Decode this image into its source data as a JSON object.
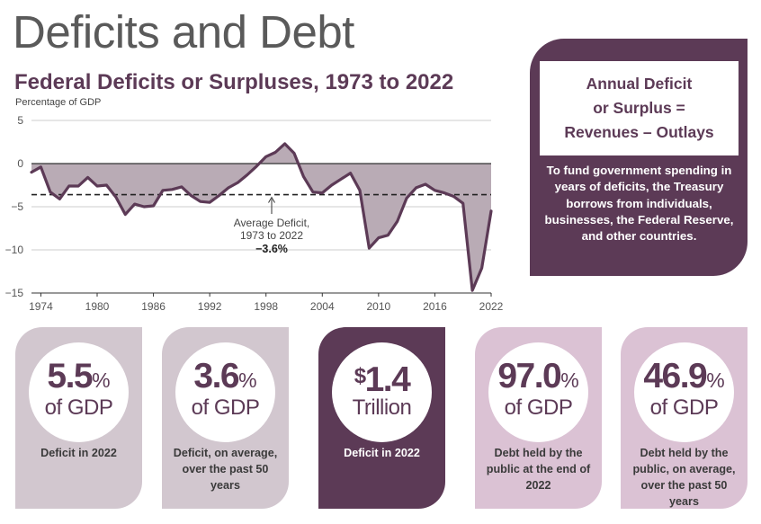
{
  "page_title": "Deficits and Debt",
  "chart_data": {
    "type": "area",
    "title": "Federal Deficits or Surpluses, 1973 to 2022",
    "ylabel": "Percentage of GDP",
    "xlabel": "",
    "xlim": [
      1973,
      2022
    ],
    "ylim": [
      -15,
      5
    ],
    "yticks": [
      5,
      0,
      -5,
      -10,
      -15
    ],
    "xticks": [
      1974,
      1980,
      1986,
      1992,
      1998,
      2004,
      2010,
      2016,
      2022
    ],
    "grid": "horizontal",
    "x": [
      1973,
      1974,
      1975,
      1976,
      1977,
      1978,
      1979,
      1980,
      1981,
      1982,
      1983,
      1984,
      1985,
      1986,
      1987,
      1988,
      1989,
      1990,
      1991,
      1992,
      1993,
      1994,
      1995,
      1996,
      1997,
      1998,
      1999,
      2000,
      2001,
      2002,
      2003,
      2004,
      2005,
      2006,
      2007,
      2008,
      2009,
      2010,
      2011,
      2012,
      2013,
      2014,
      2015,
      2016,
      2017,
      2018,
      2019,
      2020,
      2021,
      2022
    ],
    "values": [
      -1.0,
      -0.4,
      -3.3,
      -4.1,
      -2.6,
      -2.6,
      -1.6,
      -2.6,
      -2.5,
      -3.9,
      -5.9,
      -4.7,
      -5.0,
      -4.9,
      -3.1,
      -3.0,
      -2.7,
      -3.7,
      -4.4,
      -4.5,
      -3.7,
      -2.8,
      -2.2,
      -1.3,
      -0.3,
      0.8,
      1.3,
      2.3,
      1.2,
      -1.5,
      -3.3,
      -3.4,
      -2.5,
      -1.8,
      -1.1,
      -3.1,
      -9.8,
      -8.6,
      -8.3,
      -6.7,
      -4.0,
      -2.8,
      -2.4,
      -3.1,
      -3.4,
      -3.8,
      -4.6,
      -14.7,
      -12.1,
      -5.5
    ],
    "average": -3.6,
    "annotation": {
      "line1": "Average Deficit,",
      "line2": "1973 to 2022",
      "value": "−3.6%"
    },
    "colors": {
      "line": "#5c3a56",
      "fill": "#b9abb5",
      "average_line": "#222222",
      "axis": "#333333",
      "grid": "#cccccc"
    }
  },
  "formula": {
    "line1": "Annual Deficit",
    "line2": "or Surplus =",
    "line3": "Revenues – Outlays",
    "note": "To fund government spending in years of deficits, the Treasury borrows from individuals, businesses, the Federal Reserve, and other countries."
  },
  "stats": [
    {
      "big": "5.5",
      "suffix": "%",
      "sub": "of GDP",
      "label": "Deficit in 2022",
      "style": "light"
    },
    {
      "big": "3.6",
      "suffix": "%",
      "sub": "of GDP",
      "label": "Deficit, on average, over the past 50 years",
      "style": "light"
    },
    {
      "prefix": "$",
      "big": "1.4",
      "sub": "Trillion",
      "label": "Deficit in 2022",
      "style": "dark"
    },
    {
      "big": "97.0",
      "suffix": "%",
      "sub": "of GDP",
      "label": "Debt held by the public at the end of 2022",
      "style": "pink"
    },
    {
      "big": "46.9",
      "suffix": "%",
      "sub": "of GDP",
      "label": "Debt held by the public, on average, over the past 50 years",
      "style": "pink"
    }
  ],
  "colors": {
    "brand": "#5c3a56",
    "card_light": "#d2c7cf",
    "card_pink": "#dbc2d4"
  }
}
